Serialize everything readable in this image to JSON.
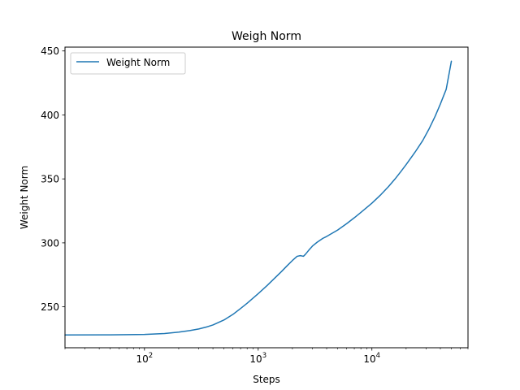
{
  "chart_data": {
    "type": "line",
    "title": "Weigh Norm",
    "xlabel": "Steps",
    "ylabel": "Weight Norm",
    "xscale": "log",
    "xlim": [
      20,
      70000
    ],
    "ylim": [
      218,
      453
    ],
    "x_major_ticks": [
      100,
      1000,
      10000
    ],
    "x_tick_labels": [
      {
        "base": "10",
        "exp": "2"
      },
      {
        "base": "10",
        "exp": "3"
      },
      {
        "base": "10",
        "exp": "4"
      }
    ],
    "y_ticks": [
      250,
      300,
      350,
      400,
      450
    ],
    "y_tick_labels": [
      "250",
      "300",
      "350",
      "400",
      "450"
    ],
    "grid": false,
    "legend": "top-left",
    "series": [
      {
        "name": "Weight Norm",
        "color": "#1f77b4",
        "x": [
          20,
          50,
          100,
          150,
          200,
          250,
          300,
          350,
          400,
          500,
          600,
          700,
          800,
          1000,
          1200,
          1400,
          1600,
          1800,
          2000,
          2200,
          2350,
          2500,
          2600,
          2800,
          3000,
          3300,
          3700,
          4000,
          5000,
          6000,
          7000,
          8000,
          9000,
          10000,
          12000,
          14000,
          16000,
          18000,
          20000,
          24000,
          28000,
          32000,
          36000,
          40000,
          45000,
          50000
        ],
        "y": [
          228,
          228.1,
          228.4,
          229.1,
          230.2,
          231.4,
          232.7,
          234.2,
          235.8,
          239.7,
          244.1,
          248.7,
          252.8,
          260.3,
          266.7,
          272.5,
          277.5,
          282.2,
          286.2,
          289.5,
          290,
          289.5,
          291,
          294.5,
          297.5,
          300.5,
          303.5,
          305,
          310,
          315,
          319.6,
          323.8,
          327.6,
          331,
          337.7,
          344,
          350,
          355.8,
          361.2,
          371,
          380,
          389.5,
          399,
          408.5,
          420,
          442
        ]
      }
    ]
  }
}
